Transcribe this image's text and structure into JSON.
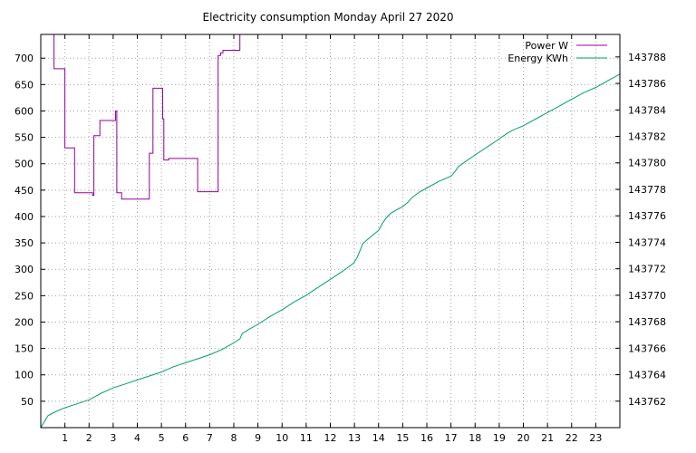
{
  "chart_data": {
    "type": "line",
    "title": "Electricity consumption Monday April 27 2020",
    "grid": true,
    "legend_position": "top-right",
    "x_ticks": [
      "1",
      "2",
      "3",
      "4",
      "5",
      "6",
      "7",
      "8",
      "9",
      "10",
      "11",
      "12",
      "13",
      "14",
      "15",
      "16",
      "17",
      "18",
      "19",
      "20",
      "21",
      "22",
      "23"
    ],
    "xlim": [
      0,
      24
    ],
    "y_left_ticks": [
      "50",
      "100",
      "150",
      "200",
      "250",
      "300",
      "350",
      "400",
      "450",
      "500",
      "550",
      "600",
      "650",
      "700"
    ],
    "ylim_left": [
      0,
      745
    ],
    "y_right_ticks": [
      "143762",
      "143764",
      "143766",
      "143768",
      "143770",
      "143772",
      "143774",
      "143776",
      "143778",
      "143780",
      "143782",
      "143784",
      "143786",
      "143788"
    ],
    "ylim_right": [
      143760.0,
      143789.7
    ],
    "series": [
      {
        "name": "Power W",
        "axis": "left",
        "color": "#94009c",
        "style": "steps",
        "x": [
          0.55,
          0.55,
          1.0,
          1.0,
          1.4,
          1.4,
          2.15,
          2.15,
          2.2,
          2.2,
          2.45,
          2.45,
          3.1,
          3.1,
          3.15,
          3.15,
          3.35,
          3.35,
          4.5,
          4.5,
          4.65,
          4.65,
          5.05,
          5.05,
          5.1,
          5.1,
          5.3,
          5.3,
          5.45,
          5.45,
          6.5,
          6.5,
          7.35,
          7.35,
          7.45,
          7.45,
          7.55,
          7.55,
          8.25,
          8.25,
          8.4
        ],
        "y": [
          760,
          680,
          680,
          530,
          530,
          445,
          445,
          440,
          440,
          553,
          553,
          582,
          582,
          600,
          600,
          445,
          445,
          433,
          433,
          520,
          520,
          643,
          643,
          585,
          585,
          507,
          507,
          510,
          510,
          510,
          510,
          447,
          447,
          705,
          705,
          710,
          710,
          715,
          715,
          760,
          760
        ]
      },
      {
        "name": "Energy KWh",
        "axis": "right",
        "color": "#009e73",
        "style": "line",
        "x": [
          0,
          0.3,
          0.6,
          1.0,
          1.5,
          2.0,
          2.2,
          2.5,
          3.0,
          3.5,
          4.0,
          4.5,
          5.0,
          5.5,
          6.0,
          6.5,
          7.0,
          7.5,
          8.0,
          8.25,
          8.35,
          8.6,
          9.0,
          9.5,
          10.0,
          10.5,
          11.0,
          11.5,
          12.0,
          12.5,
          12.95,
          13.1,
          13.35,
          13.6,
          14.0,
          14.15,
          14.3,
          14.5,
          15.0,
          15.2,
          15.4,
          15.7,
          16.0,
          16.5,
          17.0,
          17.15,
          17.3,
          17.6,
          18.0,
          18.5,
          19.0,
          19.3,
          19.6,
          20.0,
          20.5,
          21.0,
          21.5,
          22.0,
          22.5,
          23.0,
          23.5,
          24.0
        ],
        "y": [
          143760.0,
          143760.9,
          143761.2,
          143761.5,
          143761.8,
          143762.1,
          143762.3,
          143762.6,
          143763.0,
          143763.3,
          143763.6,
          143763.9,
          143764.2,
          143764.6,
          143764.9,
          143765.2,
          143765.5,
          143765.9,
          143766.4,
          143766.7,
          143767.1,
          143767.4,
          143767.8,
          143768.4,
          143768.9,
          143769.5,
          143770.0,
          143770.6,
          143771.2,
          143771.8,
          143772.4,
          143772.8,
          143773.9,
          143774.3,
          143774.9,
          143775.4,
          143775.8,
          143776.2,
          143776.7,
          143777.0,
          143777.4,
          143777.8,
          143778.1,
          143778.6,
          143779.0,
          143779.3,
          143779.7,
          143780.1,
          143780.6,
          143781.2,
          143781.8,
          143782.2,
          143782.5,
          143782.8,
          143783.3,
          143783.8,
          143784.3,
          143784.8,
          143785.3,
          143785.7,
          143786.2,
          143786.7
        ]
      }
    ]
  }
}
